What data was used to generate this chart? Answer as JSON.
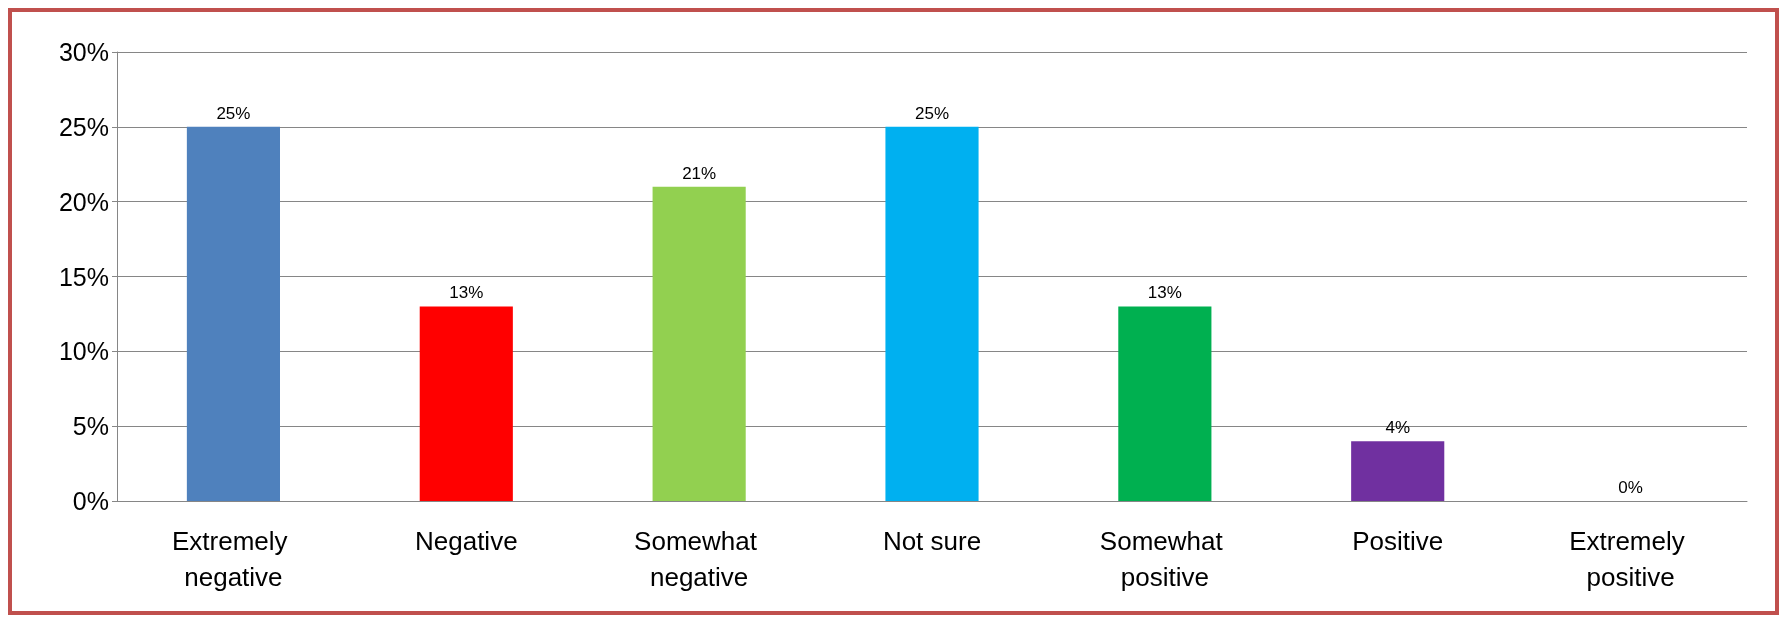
{
  "chart_data": {
    "type": "bar",
    "categories": [
      "Extremely negative",
      "Negative",
      "Somewhat negative",
      "Not sure",
      "Somewhat positive",
      "Positive",
      "Extremely positive"
    ],
    "values": [
      25,
      13,
      21,
      25,
      13,
      4,
      0
    ],
    "value_labels": [
      "25%",
      "13%",
      "21%",
      "25%",
      "13%",
      "4%",
      "0%"
    ],
    "colors": [
      "#4f81bd",
      "#ff0000",
      "#92d050",
      "#00b0f0",
      "#00b050",
      "#7030a0",
      "#7f7f7f"
    ],
    "ylim": [
      0,
      30
    ],
    "yticks": [
      {
        "value": 0,
        "label": "0%"
      },
      {
        "value": 5,
        "label": "5%"
      },
      {
        "value": 10,
        "label": "10%"
      },
      {
        "value": 15,
        "label": "15%"
      },
      {
        "value": 20,
        "label": "20%"
      },
      {
        "value": 25,
        "label": "25%"
      },
      {
        "value": 30,
        "label": "30%"
      }
    ],
    "grid": "y"
  }
}
